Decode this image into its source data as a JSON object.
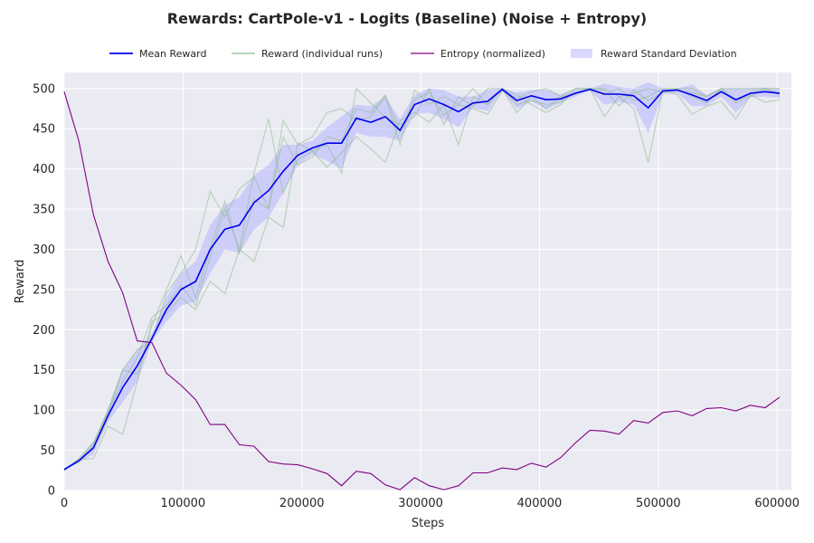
{
  "chart_data": {
    "type": "line",
    "title": "Rewards: CartPole-v1 - Logits (Baseline) (Noise + Entropy)",
    "xlabel": "Steps",
    "ylabel": "Reward",
    "xlim": [
      0,
      612000
    ],
    "ylim": [
      0,
      520
    ],
    "xticks": [
      0,
      100000,
      200000,
      300000,
      400000,
      500000,
      600000
    ],
    "xtick_labels": [
      "0",
      "100000",
      "200000",
      "300000",
      "400000",
      "500000",
      "600000"
    ],
    "yticks": [
      0,
      50,
      100,
      150,
      200,
      250,
      300,
      350,
      400,
      450,
      500
    ],
    "ytick_labels": [
      "0",
      "50",
      "100",
      "150",
      "200",
      "250",
      "300",
      "350",
      "400",
      "450",
      "500"
    ],
    "grid": true,
    "legend_position": "top",
    "legend": [
      {
        "label": "Mean Reward",
        "kind": "line",
        "color": "#0000ee"
      },
      {
        "label": "Reward (individual runs)",
        "kind": "line",
        "color": "#8fbc8f"
      },
      {
        "label": "Entropy (normalized)",
        "kind": "line",
        "color": "#800080"
      },
      {
        "label": "Reward Standard Deviation",
        "kind": "patch",
        "color": "#b4b4ff"
      }
    ],
    "x": [
      0,
      12288,
      24576,
      36864,
      49152,
      61440,
      73728,
      86016,
      98304,
      110592,
      122880,
      135168,
      147456,
      159744,
      172032,
      184320,
      196608,
      208896,
      221184,
      233472,
      245760,
      258048,
      270336,
      282624,
      294912,
      307200,
      319488,
      331776,
      344064,
      356352,
      368640,
      380928,
      393216,
      405504,
      417792,
      430080,
      442368,
      454656,
      466944,
      479232,
      491520,
      503808,
      516096,
      528384,
      540672,
      552960,
      565248,
      577536,
      589824,
      602112
    ],
    "series": [
      {
        "name": "Mean Reward",
        "color": "#0000ee",
        "values": [
          26,
          37,
          53,
          93,
          128,
          155,
          189,
          225,
          250,
          260,
          300,
          325,
          330,
          358,
          373,
          397,
          417,
          426,
          432,
          432,
          463,
          458,
          465,
          448,
          480,
          487,
          480,
          471,
          482,
          484,
          499,
          485,
          491,
          486,
          487,
          494,
          499,
          493,
          493,
          491,
          476,
          497,
          498,
          492,
          485,
          496,
          486,
          494,
          496,
          494
        ]
      },
      {
        "name": "Entropy (normalized)",
        "color": "#800080",
        "values": [
          496,
          435,
          343,
          285,
          246,
          186,
          184,
          146,
          131,
          113,
          82,
          82,
          57,
          55,
          36,
          33,
          32,
          27,
          21,
          6,
          24,
          21,
          7,
          1,
          16,
          6,
          1,
          6,
          22,
          22,
          28,
          26,
          34,
          29,
          41,
          59,
          75,
          74,
          70,
          87,
          84,
          97,
          99,
          93,
          102,
          103,
          99,
          106,
          103,
          116
        ]
      }
    ],
    "individual_runs": {
      "color": "#8fbc8f",
      "runs": [
        [
          26,
          38,
          40,
          80,
          70,
          135,
          210,
          220,
          240,
          225,
          260,
          245,
          300,
          285,
          340,
          327,
          432,
          422,
          402,
          420,
          440,
          425,
          408,
          460,
          470,
          458,
          480,
          430,
          490,
          480,
          500,
          470,
          490,
          475,
          490,
          493,
          500,
          465,
          490,
          475,
          408,
          498,
          492,
          468,
          478,
          484,
          462,
          492,
          483,
          486
        ],
        [
          27,
          35,
          55,
          98,
          135,
          165,
          215,
          230,
          255,
          230,
          290,
          350,
          300,
          395,
          462,
          370,
          412,
          422,
          430,
          395,
          500,
          482,
          464,
          455,
          465,
          500,
          455,
          490,
          478,
          500,
          500,
          480,
          485,
          480,
          483,
          495,
          500,
          498,
          478,
          498,
          485,
          495,
          500,
          490,
          482,
          500,
          486,
          490,
          500,
          494
        ],
        [
          25,
          40,
          60,
          95,
          150,
          175,
          185,
          245,
          270,
          300,
          372,
          340,
          375,
          390,
          350,
          460,
          430,
          440,
          470,
          475,
          460,
          465,
          490,
          430,
          498,
          480,
          490,
          480,
          500,
          480,
          500,
          492,
          480,
          470,
          480,
          500,
          500,
          492,
          500,
          485,
          490,
          500,
          500,
          500,
          490,
          500,
          500,
          500,
          500,
          500
        ],
        [
          26,
          37,
          58,
          100,
          150,
          145,
          205,
          250,
          292,
          240,
          300,
          360,
          295,
          362,
          350,
          440,
          405,
          415,
          440,
          435,
          475,
          470,
          492,
          445,
          486,
          495,
          467,
          480,
          475,
          468,
          497,
          488,
          496,
          500,
          490,
          500,
          500,
          500,
          490,
          494,
          500,
          495,
          498,
          495,
          490,
          500,
          482,
          495,
          500,
          492
        ]
      ]
    },
    "std_band": {
      "color": "#b4b4ff",
      "lower": [
        25,
        35,
        45,
        85,
        110,
        135,
        185,
        210,
        230,
        235,
        270,
        300,
        295,
        325,
        340,
        370,
        405,
        418,
        410,
        400,
        445,
        440,
        440,
        435,
        468,
        470,
        462,
        452,
        476,
        472,
        497,
        475,
        484,
        474,
        482,
        490,
        497,
        480,
        483,
        480,
        445,
        493,
        494,
        478,
        478,
        490,
        470,
        489,
        490,
        488
      ],
      "upper": [
        28,
        39,
        60,
        102,
        150,
        175,
        195,
        240,
        270,
        285,
        330,
        355,
        365,
        392,
        405,
        430,
        430,
        435,
        452,
        465,
        480,
        478,
        490,
        462,
        492,
        500,
        498,
        490,
        490,
        498,
        500,
        495,
        498,
        498,
        493,
        499,
        500,
        506,
        502,
        500,
        508,
        500,
        500,
        505,
        492,
        500,
        500,
        500,
        501,
        500
      ]
    }
  }
}
